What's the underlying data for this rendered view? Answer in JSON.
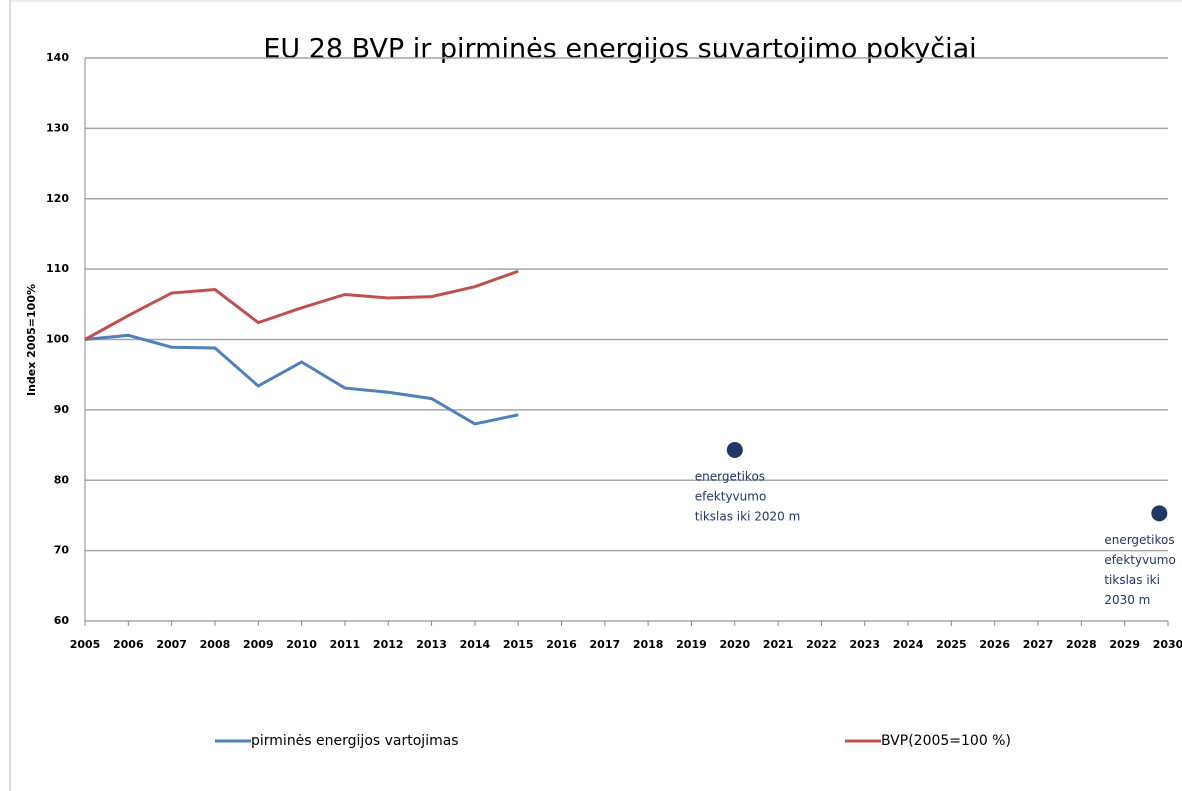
{
  "chart_data": {
    "type": "line",
    "title": "EU 28 BVP ir pirminės energijos suvartojimo pokyčiai",
    "y_label": "Index 2005=100%",
    "x": [
      2005,
      2006,
      2007,
      2008,
      2009,
      2010,
      2011,
      2012,
      2013,
      2014,
      2015
    ],
    "series": [
      {
        "name": "pirminės energijos vartojimas",
        "color": "#4f81bd",
        "values": [
          100,
          100.6,
          98.9,
          98.8,
          93.4,
          96.8,
          93.1,
          92.5,
          91.6,
          88,
          89.3
        ]
      },
      {
        "name": "BVP(2005=100 %)",
        "color": "#c0504d",
        "values": [
          100,
          103.4,
          106.6,
          107.1,
          102.4,
          104.5,
          106.4,
          105.9,
          106.1,
          107.5,
          109.7
        ]
      }
    ],
    "points": {
      "x": [
        2020,
        2029.8
      ],
      "values": [
        84.3,
        75.3
      ],
      "color": "#1f3864",
      "labels": [
        [
          "energetikos",
          "efektyvumo",
          "tikslas iki 2020 m"
        ],
        [
          "energetikos",
          "efektyvumo",
          "tikslas iki",
          "2030 m"
        ]
      ]
    },
    "xlim": [
      2005,
      2030
    ],
    "xticks": [
      2005,
      2006,
      2007,
      2008,
      2009,
      2010,
      2011,
      2012,
      2013,
      2014,
      2015,
      2016,
      2017,
      2018,
      2019,
      2020,
      2021,
      2022,
      2023,
      2024,
      2025,
      2026,
      2027,
      2028,
      2029,
      2030
    ],
    "ylim": [
      60,
      140
    ],
    "yticks": [
      60,
      70,
      80,
      90,
      100,
      110,
      120,
      130,
      140
    ],
    "grid": true
  }
}
